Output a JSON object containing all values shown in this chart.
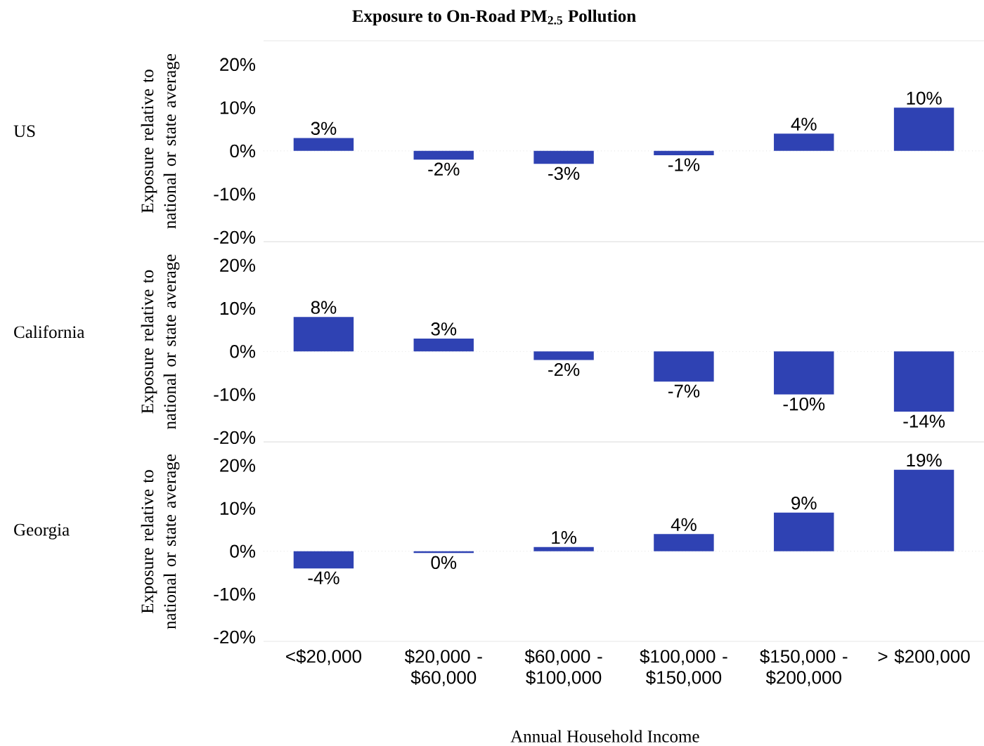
{
  "chart_data": [
    {
      "type": "bar",
      "title": "Exposure to On-Road PM$_{2.5}$ Pollution",
      "annotations": [
        "US"
      ],
      "ylabel": "Exposure relative to national or state average",
      "categories": [
        null,
        null,
        null,
        null,
        null,
        null
      ],
      "values": [
        3,
        -2,
        -3,
        -1,
        4,
        10
      ],
      "value_labels": [
        "3%",
        "-2%",
        "-3%",
        "-1%",
        "4%",
        "10%"
      ],
      "color": "#2f42b3",
      "ylim": [
        -21,
        25.5
      ],
      "yticks": [
        {
          "value": -20,
          "label": "-20%"
        },
        {
          "value": -10,
          "label": "-10%"
        },
        {
          "value": 0,
          "label": "0%"
        },
        {
          "value": 10,
          "label": "10%"
        },
        {
          "value": 20,
          "label": "20%"
        }
      ],
      "ref_lines": [
        {
          "axis": "y",
          "value": 0,
          "color": "#d0d0d0",
          "line_style": "dotted"
        }
      ],
      "tick_labels": "y"
    },
    {
      "type": "bar",
      "annotations": [
        "California"
      ],
      "ylabel": "Exposure relative to national or state average",
      "categories": [
        null,
        null,
        null,
        null,
        null,
        null
      ],
      "values": [
        8,
        3,
        -2,
        -7,
        -10,
        -14
      ],
      "value_labels": [
        "8%",
        "3%",
        "-2%",
        "-7%",
        "-10%",
        "-14%"
      ],
      "color": "#2f42b3",
      "ylim": [
        -21,
        25.5
      ],
      "yticks": [
        {
          "value": -20,
          "label": "-20%"
        },
        {
          "value": -10,
          "label": "-10%"
        },
        {
          "value": 0,
          "label": "0%"
        },
        {
          "value": 10,
          "label": "10%"
        },
        {
          "value": 20,
          "label": "20%"
        }
      ],
      "ref_lines": [
        {
          "axis": "y",
          "value": 0,
          "color": "#d0d0d0",
          "line_style": "dotted"
        }
      ],
      "tick_labels": "y"
    },
    {
      "type": "bar",
      "annotations": [
        "Georgia"
      ],
      "ylabel": "Exposure relative to national or state average",
      "xlabel": "Annual Household Income",
      "categories": [
        "<$20,000",
        "$20,000 - $60,000",
        "$60,000 - $100,000",
        "$100,000 - $150,000",
        "$150,000 - $200,000",
        "> $200,000"
      ],
      "values": [
        -4,
        -0.4,
        1,
        4,
        9,
        19
      ],
      "value_labels": [
        "-4%",
        "0%",
        "1%",
        "4%",
        "9%",
        "19%"
      ],
      "color": "#2f42b3",
      "ylim": [
        -21,
        25.5
      ],
      "yticks": [
        {
          "value": -20,
          "label": "-20%"
        },
        {
          "value": -10,
          "label": "-10%"
        },
        {
          "value": 0,
          "label": "0%"
        },
        {
          "value": 10,
          "label": "10%"
        },
        {
          "value": 20,
          "label": "20%"
        }
      ],
      "ref_lines": [
        {
          "axis": "y",
          "value": 0,
          "color": "#d0d0d0",
          "line_style": "dotted"
        }
      ]
    }
  ]
}
